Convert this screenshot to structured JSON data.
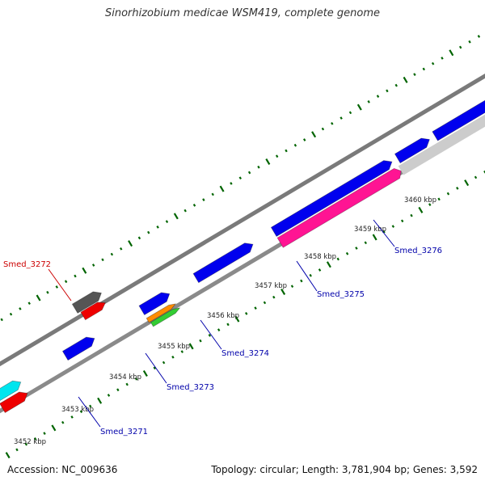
{
  "title": "Sinorhizobium medicae WSM419, complete genome",
  "footer": {
    "accession": "Accession: NC_009636",
    "summary": "Topology: circular; Length: 3,781,904 bp; Genes: 3,592"
  },
  "ticks": [
    "3452 kbp",
    "3453 kbp",
    "3454 kbp",
    "3455 kbp",
    "3456 kbp",
    "3457 kbp",
    "3458 kbp",
    "3459 kbp",
    "3460 kbp"
  ],
  "genes": [
    {
      "id": "Smed_3271",
      "label": "Smed_3271",
      "color": "#0000ee"
    },
    {
      "id": "Smed_3272",
      "label": "Smed_3272",
      "color": "#dd0000"
    },
    {
      "id": "Smed_3273",
      "label": "Smed_3273",
      "color": "#0000ee"
    },
    {
      "id": "Smed_3274",
      "label": "Smed_3274",
      "color": "#0000ee"
    },
    {
      "id": "Smed_3275",
      "label": "Smed_3275",
      "color": "#ff1493"
    },
    {
      "id": "Smed_3276",
      "label": "Smed_3276",
      "color": "#0000ee"
    }
  ],
  "colors": {
    "backbone": "#808080",
    "cds_forward": "#0000ee",
    "cds_reverse": "#0000ee",
    "trna": "#ff1493",
    "rrna": "#cccccc",
    "misc_gray": "#555555",
    "red": "#ee0000",
    "cyan": "#00e5ee",
    "orange": "#ff8c00",
    "green": "#33cc33",
    "tick": "#006400",
    "label_blue": "#0000aa",
    "label_red": "#cc0000"
  }
}
